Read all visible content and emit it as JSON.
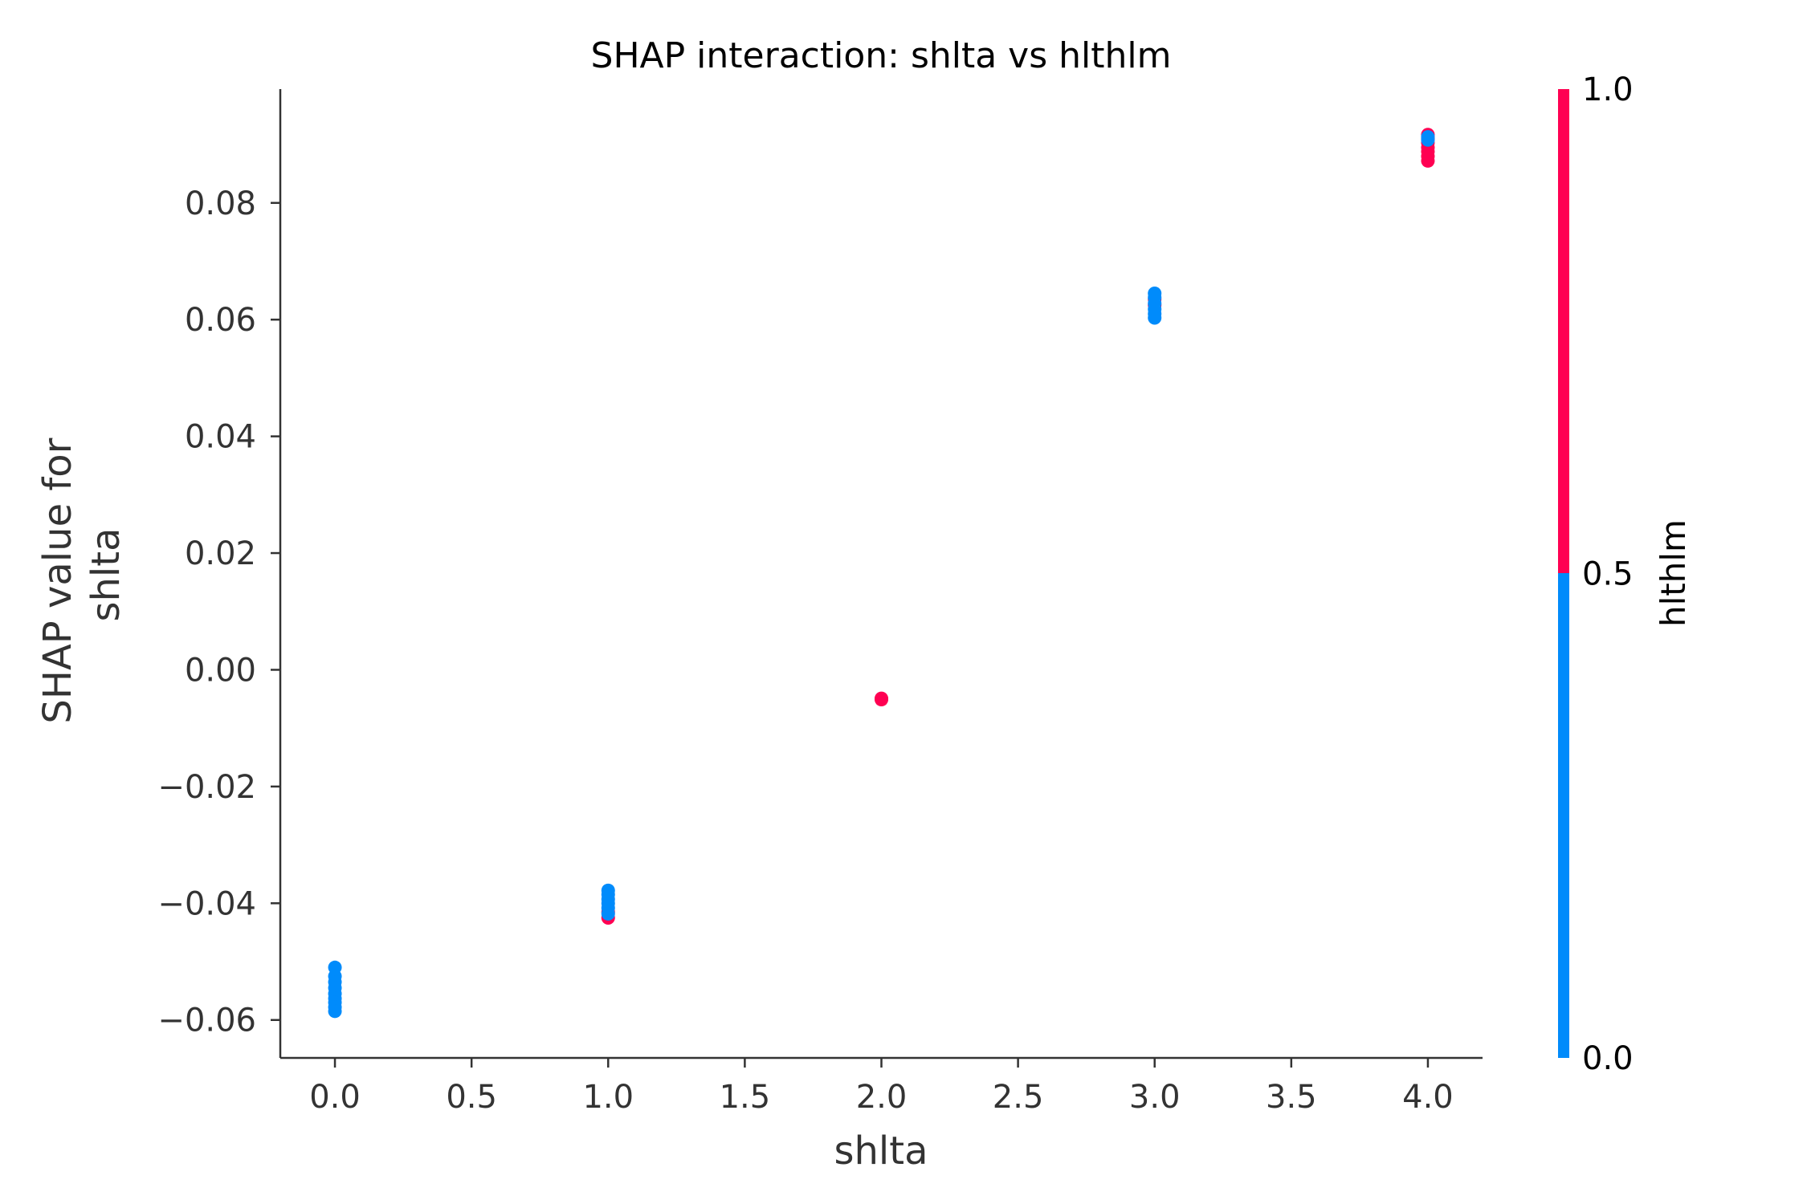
{
  "chart_data": {
    "type": "scatter",
    "title": "SHAP interaction: shlta vs hlthlm",
    "xlabel": "shlta",
    "ylabel_lines": [
      "SHAP value for",
      "shlta"
    ],
    "xlim": [
      -0.2,
      4.2
    ],
    "ylim": [
      -0.0665,
      0.0995
    ],
    "xticks": [
      0.0,
      0.5,
      1.0,
      1.5,
      2.0,
      2.5,
      3.0,
      3.5,
      4.0
    ],
    "xtick_labels": [
      "0.0",
      "0.5",
      "1.0",
      "1.5",
      "2.0",
      "2.5",
      "3.0",
      "3.5",
      "4.0"
    ],
    "yticks": [
      -0.06,
      -0.04,
      -0.02,
      0.0,
      0.02,
      0.04,
      0.06,
      0.08
    ],
    "ytick_labels": [
      "−0.06",
      "−0.04",
      "−0.02",
      "0.00",
      "0.02",
      "0.04",
      "0.06",
      "0.08"
    ],
    "grid": false,
    "colorbar": {
      "label": "hlthlm",
      "range": [
        0.0,
        1.0
      ],
      "ticks": [
        0.0,
        0.5,
        1.0
      ],
      "tick_labels": [
        "0.0",
        "0.5",
        "1.0"
      ],
      "low_color": "#008bfb",
      "high_color": "#ff0052"
    },
    "points": [
      {
        "x": 0,
        "y": -0.051,
        "c": 0
      },
      {
        "x": 0,
        "y": -0.0525,
        "c": 0
      },
      {
        "x": 0,
        "y": -0.0535,
        "c": 0
      },
      {
        "x": 0,
        "y": -0.0545,
        "c": 0
      },
      {
        "x": 0,
        "y": -0.0555,
        "c": 0
      },
      {
        "x": 0,
        "y": -0.0563,
        "c": 0
      },
      {
        "x": 0,
        "y": -0.057,
        "c": 0
      },
      {
        "x": 0,
        "y": -0.0578,
        "c": 0
      },
      {
        "x": 0,
        "y": -0.0585,
        "c": 0
      },
      {
        "x": 1,
        "y": -0.0425,
        "c": 1
      },
      {
        "x": 1,
        "y": -0.0415,
        "c": 1
      },
      {
        "x": 1,
        "y": -0.0378,
        "c": 0
      },
      {
        "x": 1,
        "y": -0.0385,
        "c": 0
      },
      {
        "x": 1,
        "y": -0.0393,
        "c": 0
      },
      {
        "x": 1,
        "y": -0.04,
        "c": 0
      },
      {
        "x": 1,
        "y": -0.0408,
        "c": 0
      },
      {
        "x": 1,
        "y": -0.0418,
        "c": 0
      },
      {
        "x": 2,
        "y": -0.0049,
        "c": 1
      },
      {
        "x": 2,
        "y": -0.005,
        "c": 1
      },
      {
        "x": 2,
        "y": -0.0051,
        "c": 1
      },
      {
        "x": 3,
        "y": 0.0625,
        "c": 1
      },
      {
        "x": 3,
        "y": 0.0635,
        "c": 1
      },
      {
        "x": 3,
        "y": 0.0645,
        "c": 0
      },
      {
        "x": 3,
        "y": 0.0638,
        "c": 0
      },
      {
        "x": 3,
        "y": 0.0628,
        "c": 0
      },
      {
        "x": 3,
        "y": 0.0618,
        "c": 0
      },
      {
        "x": 3,
        "y": 0.061,
        "c": 0
      },
      {
        "x": 3,
        "y": 0.0603,
        "c": 0
      },
      {
        "x": 4,
        "y": 0.0872,
        "c": 1
      },
      {
        "x": 4,
        "y": 0.088,
        "c": 1
      },
      {
        "x": 4,
        "y": 0.0888,
        "c": 1
      },
      {
        "x": 4,
        "y": 0.0895,
        "c": 1
      },
      {
        "x": 4,
        "y": 0.0903,
        "c": 1
      },
      {
        "x": 4,
        "y": 0.091,
        "c": 1
      },
      {
        "x": 4,
        "y": 0.0917,
        "c": 1
      },
      {
        "x": 4,
        "y": 0.0913,
        "c": 0
      },
      {
        "x": 4,
        "y": 0.0908,
        "c": 0
      }
    ]
  }
}
